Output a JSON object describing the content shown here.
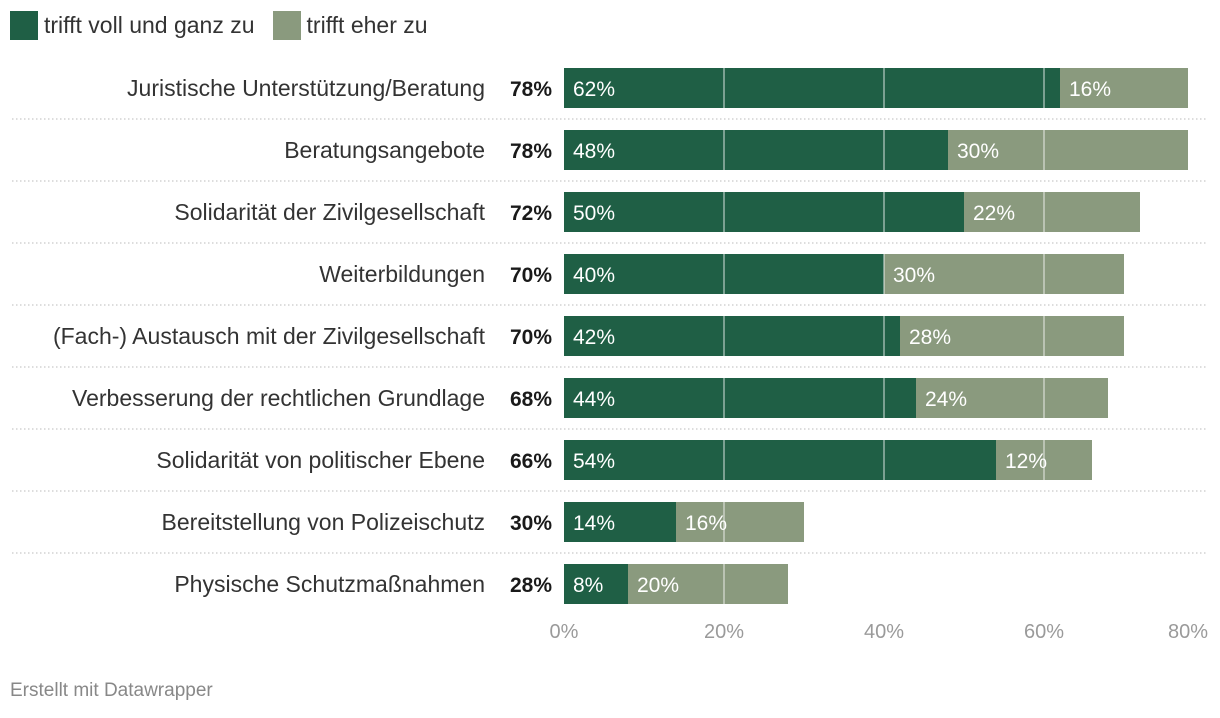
{
  "chart_data": {
    "type": "bar",
    "orientation": "horizontal",
    "stacked": true,
    "categories": [
      "Juristische Unterstützung/Beratung",
      "Beratungsangebote",
      "Solidarität der Zivilgesellschaft",
      "Weiterbildungen",
      "(Fach-) Austausch mit der Zivilgesellschaft",
      "Verbesserung der rechtlichen Grundlage",
      "Solidarität von politischer Ebene",
      "Bereitstellung von Polizeischutz",
      "Physische Schutzmaßnahmen"
    ],
    "totals": [
      78,
      78,
      72,
      70,
      70,
      68,
      66,
      30,
      28
    ],
    "total_labels": [
      "78%",
      "78%",
      "72%",
      "70%",
      "70%",
      "68%",
      "66%",
      "30%",
      "28%"
    ],
    "series": [
      {
        "name": "trifft voll und ganz zu",
        "color": "#1f5f45",
        "values": [
          62,
          48,
          50,
          40,
          42,
          44,
          54,
          14,
          8
        ],
        "labels": [
          "62%",
          "48%",
          "50%",
          "40%",
          "42%",
          "44%",
          "54%",
          "14%",
          "8%"
        ]
      },
      {
        "name": "trifft eher zu",
        "color": "#8a9a7e",
        "values": [
          16,
          30,
          22,
          30,
          28,
          24,
          12,
          16,
          20
        ],
        "labels": [
          "16%",
          "30%",
          "22%",
          "30%",
          "28%",
          "24%",
          "12%",
          "16%",
          "20%"
        ]
      }
    ],
    "xlim": [
      0,
      80
    ],
    "xticks": [
      0,
      20,
      40,
      60,
      80
    ],
    "xtick_labels": [
      "0%",
      "20%",
      "40%",
      "60%",
      "80%"
    ],
    "legend_position": "top-left"
  },
  "footer": {
    "credit": "Erstellt mit Datawrapper"
  }
}
